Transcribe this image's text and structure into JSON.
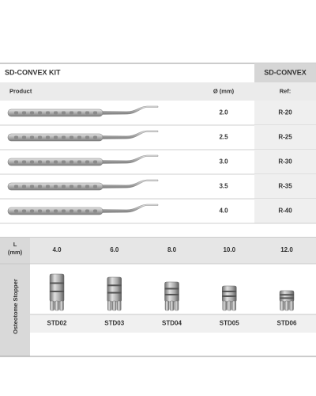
{
  "header": {
    "title": "SD-CONVEX KIT",
    "product_code": "SD-CONVEX"
  },
  "table": {
    "columns": [
      "Product",
      "Ø (mm)",
      "Ref:"
    ],
    "rows": [
      {
        "diameter": "2.0",
        "ref": "R-20"
      },
      {
        "diameter": "2.5",
        "ref": "R-25"
      },
      {
        "diameter": "3.0",
        "ref": "R-30"
      },
      {
        "diameter": "3.5",
        "ref": "R-35"
      },
      {
        "diameter": "4.0",
        "ref": "R-40"
      }
    ]
  },
  "stoppers": {
    "length_label": "L",
    "length_unit": "(mm)",
    "side_label": "Osteotome Stopper",
    "items": [
      {
        "length": "4.0",
        "code": "STD02"
      },
      {
        "length": "6.0",
        "code": "STD03"
      },
      {
        "length": "8.0",
        "code": "STD04"
      },
      {
        "length": "10.0",
        "code": "STD05"
      },
      {
        "length": "12.0",
        "code": "STD06"
      }
    ]
  }
}
